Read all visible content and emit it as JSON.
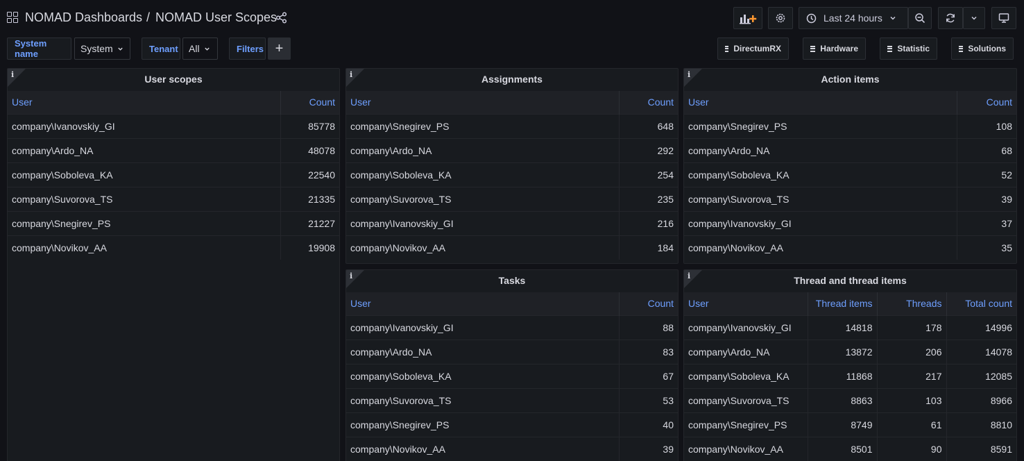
{
  "header": {
    "folder": "NOMAD Dashboards",
    "separator": "/",
    "title": "NOMAD User Scopes",
    "time_range": "Last 24 hours"
  },
  "variables": {
    "system_label": "System name",
    "system_value": "System",
    "tenant_label": "Tenant",
    "tenant_value": "All",
    "filters_label": "Filters"
  },
  "links": [
    "DirectumRX",
    "Hardware",
    "Statistic",
    "Solutions"
  ],
  "panels": {
    "user_scopes": {
      "title": "User scopes",
      "columns": [
        "User",
        "Count"
      ],
      "rows": [
        [
          "company\\Ivanovskiy_GI",
          "85778"
        ],
        [
          "company\\Ardo_NA",
          "48078"
        ],
        [
          "company\\Soboleva_KA",
          "22540"
        ],
        [
          "company\\Suvorova_TS",
          "21335"
        ],
        [
          "company\\Snegirev_PS",
          "21227"
        ],
        [
          "company\\Novikov_AA",
          "19908"
        ]
      ]
    },
    "assignments": {
      "title": "Assignments",
      "columns": [
        "User",
        "Count"
      ],
      "rows": [
        [
          "company\\Snegirev_PS",
          "648"
        ],
        [
          "company\\Ardo_NA",
          "292"
        ],
        [
          "company\\Soboleva_KA",
          "254"
        ],
        [
          "company\\Suvorova_TS",
          "235"
        ],
        [
          "company\\Ivanovskiy_GI",
          "216"
        ],
        [
          "company\\Novikov_AA",
          "184"
        ]
      ]
    },
    "action_items": {
      "title": "Action items",
      "columns": [
        "User",
        "Count"
      ],
      "rows": [
        [
          "company\\Snegirev_PS",
          "108"
        ],
        [
          "company\\Ardo_NA",
          "68"
        ],
        [
          "company\\Soboleva_KA",
          "52"
        ],
        [
          "company\\Suvorova_TS",
          "39"
        ],
        [
          "company\\Ivanovskiy_GI",
          "37"
        ],
        [
          "company\\Novikov_AA",
          "35"
        ]
      ]
    },
    "tasks": {
      "title": "Tasks",
      "columns": [
        "User",
        "Count"
      ],
      "rows": [
        [
          "company\\Ivanovskiy_GI",
          "88"
        ],
        [
          "company\\Ardo_NA",
          "83"
        ],
        [
          "company\\Soboleva_KA",
          "67"
        ],
        [
          "company\\Suvorova_TS",
          "53"
        ],
        [
          "company\\Snegirev_PS",
          "40"
        ],
        [
          "company\\Novikov_AA",
          "39"
        ]
      ]
    },
    "threads": {
      "title": "Thread and thread items",
      "columns": [
        "User",
        "Thread items",
        "Threads",
        "Total count"
      ],
      "rows": [
        [
          "company\\Ivanovskiy_GI",
          "14818",
          "178",
          "14996"
        ],
        [
          "company\\Ardo_NA",
          "13872",
          "206",
          "14078"
        ],
        [
          "company\\Soboleva_KA",
          "11868",
          "217",
          "12085"
        ],
        [
          "company\\Suvorova_TS",
          "8863",
          "103",
          "8966"
        ],
        [
          "company\\Snegirev_PS",
          "8749",
          "61",
          "8810"
        ],
        [
          "company\\Novikov_AA",
          "8501",
          "90",
          "8591"
        ]
      ]
    }
  }
}
